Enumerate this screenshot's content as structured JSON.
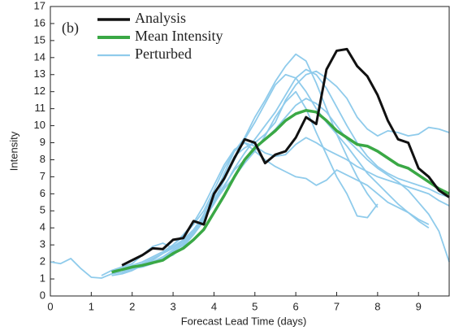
{
  "chart_data": {
    "type": "line",
    "annotation": "(b)",
    "xlabel": "Forecast Lead Time (days)",
    "ylabel": "Intensity",
    "xlim": [
      0,
      9.75
    ],
    "ylim": [
      0,
      17
    ],
    "xticks": [
      0,
      1,
      2,
      3,
      4,
      5,
      6,
      7,
      8,
      9
    ],
    "yticks": [
      0,
      1,
      2,
      3,
      4,
      5,
      6,
      7,
      8,
      9,
      10,
      11,
      12,
      13,
      14,
      15,
      16,
      17
    ],
    "legend": "upper left",
    "x": [
      0,
      0.25,
      0.5,
      0.75,
      1,
      1.25,
      1.5,
      1.75,
      2,
      2.25,
      2.5,
      2.75,
      3,
      3.25,
      3.5,
      3.75,
      4,
      4.25,
      4.5,
      4.75,
      5,
      5.25,
      5.5,
      5.75,
      6,
      6.25,
      6.5,
      6.75,
      7,
      7.25,
      7.5,
      7.75,
      8,
      8.25,
      8.5,
      8.75,
      9,
      9.25,
      9.5,
      9.75
    ],
    "series": [
      {
        "name": "Analysis",
        "color": "#111111",
        "width": 3,
        "values": [
          null,
          null,
          null,
          null,
          null,
          null,
          null,
          1.8,
          2.1,
          2.4,
          2.8,
          2.75,
          3.3,
          3.4,
          4.4,
          4.2,
          6.0,
          6.9,
          8.1,
          9.2,
          9.0,
          7.8,
          8.3,
          8.5,
          9.3,
          10.5,
          10.1,
          13.3,
          14.4,
          14.5,
          13.5,
          12.9,
          11.8,
          10.3,
          9.2,
          9.0,
          7.5,
          7.0,
          6.2,
          5.8
        ]
      },
      {
        "name": "Mean Intensity",
        "color": "#3aa845",
        "width": 3.5,
        "values": [
          null,
          null,
          null,
          null,
          null,
          null,
          1.4,
          1.55,
          1.7,
          1.8,
          1.95,
          2.1,
          2.5,
          2.8,
          3.3,
          3.9,
          4.9,
          5.9,
          7.0,
          8.0,
          8.7,
          9.2,
          9.7,
          10.3,
          10.7,
          10.9,
          10.8,
          10.3,
          9.7,
          9.3,
          8.9,
          8.8,
          8.5,
          8.1,
          7.7,
          7.5,
          7.1,
          6.7,
          6.3,
          6.0
        ]
      },
      {
        "name": "Perturbed",
        "color": "#8fcbeb",
        "width": 1.8,
        "values": [
          [
            2.0,
            1.9,
            2.2,
            1.6,
            1.1,
            1.05,
            1.3,
            1.6,
            1.8,
            2.0,
            2.3,
            2.6,
            3.0,
            3.5,
            4.2,
            5.0,
            6.2,
            7.5,
            8.5,
            9.3,
            10.5,
            11.5,
            12.6,
            13.5,
            14.2,
            13.8,
            12.5,
            11.0,
            9.5,
            8.2,
            7.0,
            6.0,
            5.2,
            null,
            null,
            null,
            null,
            null,
            null,
            null
          ],
          [
            null,
            null,
            null,
            null,
            null,
            1.2,
            1.5,
            1.7,
            1.9,
            2.4,
            2.9,
            3.1,
            2.8,
            3.3,
            3.8,
            4.8,
            6.0,
            7.0,
            8.2,
            8.7,
            9.0,
            9.5,
            10.2,
            11.5,
            12.4,
            13.0,
            13.2,
            12.8,
            12.3,
            11.6,
            10.5,
            9.8,
            9.4,
            9.7,
            9.6,
            9.4,
            9.5,
            9.9,
            9.8,
            9.6
          ],
          [
            null,
            null,
            null,
            null,
            null,
            null,
            1.3,
            1.4,
            1.6,
            1.7,
            1.9,
            2.2,
            2.4,
            2.9,
            3.6,
            4.5,
            5.8,
            7.2,
            8.5,
            9.0,
            8.5,
            8.0,
            7.6,
            7.3,
            7.0,
            6.9,
            6.5,
            6.8,
            7.4,
            7.1,
            6.8,
            6.5,
            6.0,
            5.5,
            5.2,
            4.9,
            4.5,
            4.2,
            null,
            null
          ],
          [
            null,
            null,
            null,
            null,
            null,
            null,
            null,
            1.4,
            1.6,
            1.8,
            2.0,
            2.2,
            2.6,
            3.0,
            3.6,
            4.4,
            5.6,
            6.8,
            8.0,
            9.2,
            10.2,
            11.3,
            12.4,
            13.0,
            12.8,
            12.0,
            11.0,
            10.2,
            9.5,
            8.8,
            8.0,
            7.2,
            6.6,
            6.0,
            5.4,
            4.9,
            4.4,
            4.0,
            null,
            null
          ],
          [
            null,
            null,
            null,
            null,
            null,
            null,
            1.2,
            1.3,
            1.5,
            1.8,
            2.1,
            2.5,
            2.8,
            3.2,
            3.8,
            4.6,
            5.5,
            6.3,
            7.0,
            7.8,
            8.5,
            9.4,
            10.5,
            11.4,
            12.0,
            11.0,
            9.6,
            8.3,
            7.0,
            6.0,
            4.7,
            4.6,
            5.4,
            null,
            null,
            null,
            null,
            null,
            null,
            null
          ],
          [
            null,
            null,
            null,
            null,
            null,
            null,
            null,
            1.5,
            1.7,
            1.9,
            2.2,
            2.5,
            3.0,
            3.6,
            4.3,
            5.3,
            6.5,
            7.7,
            8.6,
            9.0,
            8.8,
            8.4,
            8.2,
            8.3,
            8.9,
            9.3,
            9.0,
            8.6,
            8.3,
            8.0,
            7.6,
            7.3,
            7.0,
            6.8,
            6.6,
            6.4,
            6.2,
            6.0,
            5.6,
            5.3
          ],
          [
            null,
            null,
            null,
            null,
            null,
            null,
            null,
            null,
            1.6,
            1.8,
            2.1,
            2.5,
            2.9,
            3.3,
            3.9,
            4.7,
            5.6,
            6.5,
            7.4,
            8.0,
            8.6,
            9.2,
            9.8,
            10.5,
            11.2,
            11.6,
            11.3,
            10.8,
            10.0,
            9.2,
            8.6,
            8.0,
            7.5,
            7.1,
            6.7,
            6.2,
            5.5,
            4.8,
            3.8,
            2.0
          ],
          [
            null,
            null,
            null,
            null,
            null,
            null,
            null,
            1.3,
            1.5,
            1.8,
            2.0,
            2.3,
            2.7,
            3.1,
            3.7,
            4.5,
            5.4,
            6.4,
            7.5,
            8.4,
            9.2,
            10.0,
            10.8,
            11.8,
            12.8,
            13.3,
            13.0,
            12.2,
            11.1,
            10.0,
            9.0,
            8.2,
            7.6,
            7.2,
            6.9,
            6.7,
            6.5,
            6.3,
            6.0,
            5.8
          ]
        ]
      }
    ]
  }
}
